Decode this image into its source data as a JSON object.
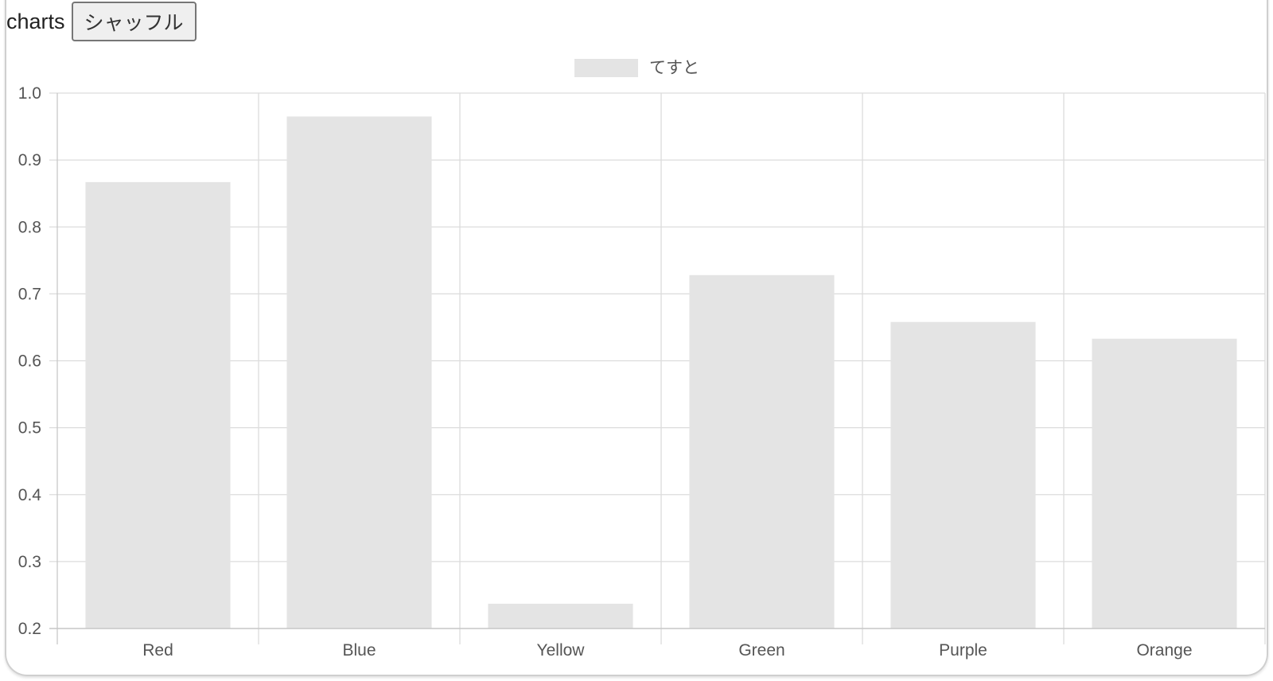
{
  "header": {
    "title": "charts",
    "shuffle_label": "シャッフル"
  },
  "colors": {
    "bar_fill": "#e4e4e4",
    "grid": "#dcdcdc",
    "axis": "#c8c8c8",
    "tick_text": "#555555"
  },
  "chart_data": {
    "type": "bar",
    "categories": [
      "Red",
      "Blue",
      "Yellow",
      "Green",
      "Purple",
      "Orange"
    ],
    "series": [
      {
        "name": "てすと",
        "values": [
          0.867,
          0.965,
          0.237,
          0.728,
          0.658,
          0.633
        ]
      }
    ],
    "y_ticks": [
      "0.2",
      "0.3",
      "0.4",
      "0.5",
      "0.6",
      "0.7",
      "0.8",
      "0.9",
      "1.0"
    ],
    "ylim": [
      0.2,
      1.0
    ],
    "legend_position": "top-center",
    "grid": true
  }
}
